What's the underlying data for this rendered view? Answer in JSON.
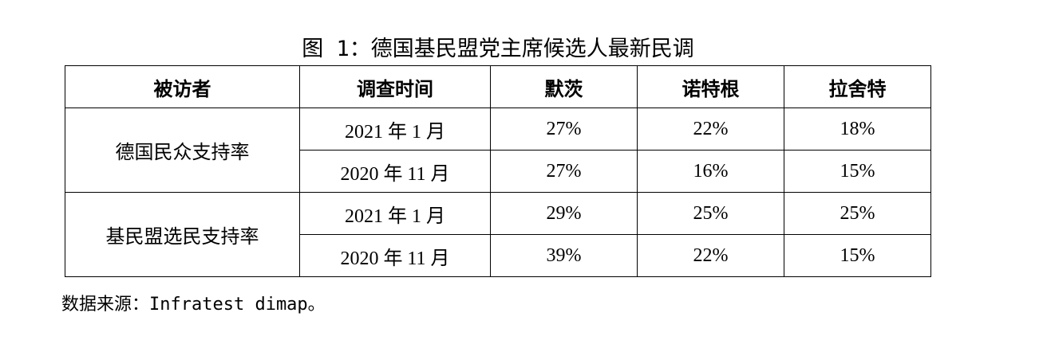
{
  "caption": "图 1：德国基民盟党主席候选人最新民调",
  "table": {
    "headers": [
      "被访者",
      "调查时间",
      "默茨",
      "诺特根",
      "拉舍特"
    ],
    "groups": [
      {
        "label": "德国民众支持率",
        "rows": [
          {
            "date": "2021 年 1 月",
            "merz": "27%",
            "roettgen": "22%",
            "laschet": "18%"
          },
          {
            "date": "2020 年 11 月",
            "merz": "27%",
            "roettgen": "16%",
            "laschet": "15%"
          }
        ]
      },
      {
        "label": "基民盟选民支持率",
        "rows": [
          {
            "date": "2021 年 1 月",
            "merz": "29%",
            "roettgen": "25%",
            "laschet": "25%"
          },
          {
            "date": "2020 年 11 月",
            "merz": "39%",
            "roettgen": "22%",
            "laschet": "15%"
          }
        ]
      }
    ]
  },
  "source": "数据来源：Infratest dimap。"
}
